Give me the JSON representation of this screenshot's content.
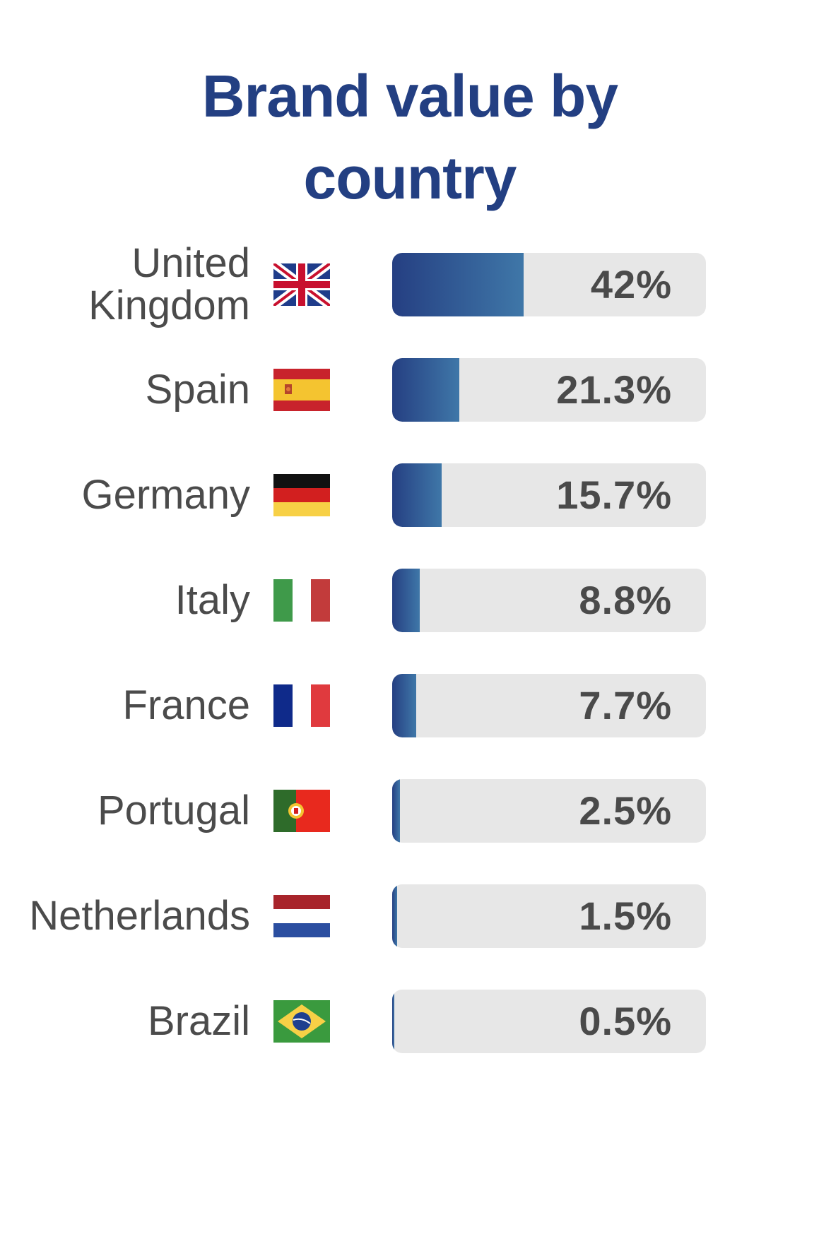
{
  "chart_data": {
    "type": "bar",
    "title": "Brand value by country",
    "title_lines": [
      "Brand value by",
      "country"
    ],
    "unit": "%",
    "xlim": [
      0,
      100
    ],
    "categories": [
      "United Kingdom",
      "Spain",
      "Germany",
      "Italy",
      "France",
      "Portugal",
      "Netherlands",
      "Brazil"
    ],
    "values": [
      42,
      21.3,
      15.7,
      8.8,
      7.7,
      2.5,
      1.5,
      0.5
    ],
    "rows": [
      {
        "label_lines": [
          "United",
          "Kingdom"
        ],
        "flag": "uk-flag-icon",
        "value": 42,
        "value_label": "42%"
      },
      {
        "label_lines": [
          "Spain"
        ],
        "flag": "spain-flag-icon",
        "value": 21.3,
        "value_label": "21.3%"
      },
      {
        "label_lines": [
          "Germany"
        ],
        "flag": "germany-flag-icon",
        "value": 15.7,
        "value_label": "15.7%"
      },
      {
        "label_lines": [
          "Italy"
        ],
        "flag": "italy-flag-icon",
        "value": 8.8,
        "value_label": "8.8%"
      },
      {
        "label_lines": [
          "France"
        ],
        "flag": "france-flag-icon",
        "value": 7.7,
        "value_label": "7.7%"
      },
      {
        "label_lines": [
          "Portugal"
        ],
        "flag": "portugal-flag-icon",
        "value": 2.5,
        "value_label": "2.5%"
      },
      {
        "label_lines": [
          "Netherlands"
        ],
        "flag": "netherlands-flag-icon",
        "value": 1.5,
        "value_label": "1.5%"
      },
      {
        "label_lines": [
          "Brazil"
        ],
        "flag": "brazil-flag-icon",
        "value": 0.5,
        "value_label": "0.5%"
      }
    ],
    "colors": {
      "title": "#233f82",
      "bar_start": "#253f82",
      "bar_end": "#3f77a8",
      "track": "#e7e7e7",
      "label": "#4b4b4b",
      "value": "#4a4a4a"
    }
  }
}
